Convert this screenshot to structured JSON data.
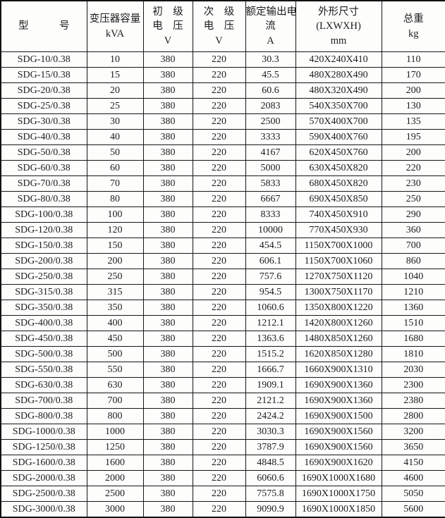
{
  "table": {
    "border_color": "#161616",
    "background_color": "#fdfdfc",
    "text_color": "#1c1c1c",
    "header": {
      "columns": [
        {
          "id": "model",
          "lines": [
            "型　　　号"
          ]
        },
        {
          "id": "capacity",
          "lines": [
            "变压器容量",
            "kVA"
          ]
        },
        {
          "id": "primary-voltage",
          "lines": [
            "初　级",
            "电　压",
            "V"
          ]
        },
        {
          "id": "secondary-voltage",
          "lines": [
            "次　级",
            "电　压",
            "V"
          ]
        },
        {
          "id": "output-current",
          "lines": [
            "额定输出电",
            "流",
            "A"
          ]
        },
        {
          "id": "dimensions",
          "lines": [
            "外形尺寸",
            "(LXWXH)",
            "mm"
          ]
        },
        {
          "id": "weight",
          "lines": [
            "总重",
            "kg"
          ]
        }
      ]
    },
    "rows": [
      [
        "SDG-10/0.38",
        "10",
        "380",
        "220",
        "30.3",
        "420X240X410",
        "110"
      ],
      [
        "SDG-15/0.38",
        "15",
        "380",
        "220",
        "45.5",
        "480X280X490",
        "170"
      ],
      [
        "SDG-20/0.38",
        "20",
        "380",
        "220",
        "60.6",
        "480X320X490",
        "200"
      ],
      [
        "SDG-25/0.38",
        "25",
        "380",
        "220",
        "2083",
        "540X350X700",
        "130"
      ],
      [
        "SDG-30/0.38",
        "30",
        "380",
        "220",
        "2500",
        "570X400X700",
        "135"
      ],
      [
        "SDG-40/0.38",
        "40",
        "380",
        "220",
        "3333",
        "590X400X760",
        "195"
      ],
      [
        "SDG-50/0.38",
        "50",
        "380",
        "220",
        "4167",
        "620X450X760",
        "200"
      ],
      [
        "SDG-60/0.38",
        "60",
        "380",
        "220",
        "5000",
        "630X450X820",
        "220"
      ],
      [
        "SDG-70/0.38",
        "70",
        "380",
        "220",
        "5833",
        "680X450X820",
        "230"
      ],
      [
        "SDG-80/0.38",
        "80",
        "380",
        "220",
        "6667",
        "690X450X850",
        "250"
      ],
      [
        "SDG-100/0.38",
        "100",
        "380",
        "220",
        "8333",
        "740X450X910",
        "290"
      ],
      [
        "SDG-120/0.38",
        "120",
        "380",
        "220",
        "10000",
        "770X450X930",
        "360"
      ],
      [
        "SDG-150/0.38",
        "150",
        "380",
        "220",
        "454.5",
        "1150X700X1000",
        "700"
      ],
      [
        "SDG-200/0.38",
        "200",
        "380",
        "220",
        "606.1",
        "1150X700X1060",
        "860"
      ],
      [
        "SDG-250/0.38",
        "250",
        "380",
        "220",
        "757.6",
        "1270X750X1120",
        "1040"
      ],
      [
        "SDG-315/0.38",
        "315",
        "380",
        "220",
        "954.5",
        "1300X750X1170",
        "1210"
      ],
      [
        "SDG-350/0.38",
        "350",
        "380",
        "220",
        "1060.6",
        "1350X800X1220",
        "1360"
      ],
      [
        "SDG-400/0.38",
        "400",
        "380",
        "220",
        "1212.1",
        "1420X800X1260",
        "1510"
      ],
      [
        "SDG-450/0.38",
        "450",
        "380",
        "220",
        "1363.6",
        "1480X850X1260",
        "1680"
      ],
      [
        "SDG-500/0.38",
        "500",
        "380",
        "220",
        "1515.2",
        "1620X850X1280",
        "1810"
      ],
      [
        "SDG-550/0.38",
        "550",
        "380",
        "220",
        "1666.7",
        "1660X900X1310",
        "2030"
      ],
      [
        "SDG-630/0.38",
        "630",
        "380",
        "220",
        "1909.1",
        "1690X900X1360",
        "2300"
      ],
      [
        "SDG-700/0.38",
        "700",
        "380",
        "220",
        "2121.2",
        "1690X900X1360",
        "2380"
      ],
      [
        "SDG-800/0.38",
        "800",
        "380",
        "220",
        "2424.2",
        "1690X900X1500",
        "2800"
      ],
      [
        "SDG-1000/0.38",
        "1000",
        "380",
        "220",
        "3030.3",
        "1690X900X1560",
        "3200"
      ],
      [
        "SDG-1250/0.38",
        "1250",
        "380",
        "220",
        "3787.9",
        "1690X900X1560",
        "3650"
      ],
      [
        "SDG-1600/0.38",
        "1600",
        "380",
        "220",
        "4848.5",
        "1690X900X1620",
        "4150"
      ],
      [
        "SDG-2000/0.38",
        "2000",
        "380",
        "220",
        "6060.6",
        "1690X1000X1680",
        "4600"
      ],
      [
        "SDG-2500/0.38",
        "2500",
        "380",
        "220",
        "7575.8",
        "1690X1000X1750",
        "5050"
      ],
      [
        "SDG-3000/0.38",
        "3000",
        "380",
        "220",
        "9090.9",
        "1690X1000X1850",
        "5600"
      ]
    ]
  }
}
